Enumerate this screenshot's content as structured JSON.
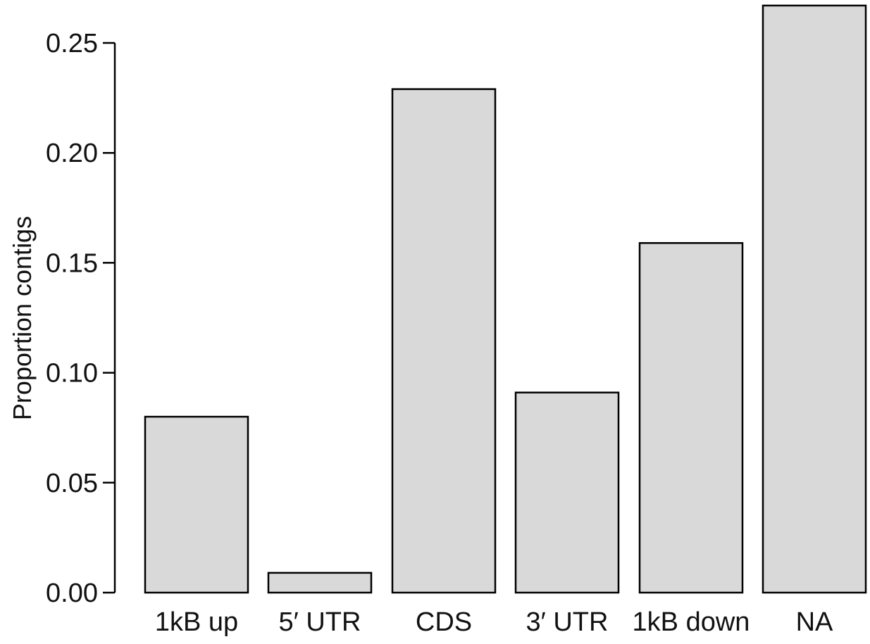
{
  "chart_data": {
    "type": "bar",
    "categories": [
      "1kB up",
      "5′ UTR",
      "CDS",
      "3′ UTR",
      "1kB down",
      "NA"
    ],
    "values": [
      0.08,
      0.009,
      0.229,
      0.091,
      0.159,
      0.267
    ],
    "title": "",
    "xlabel": "",
    "ylabel": "Proportion contigs",
    "ylim": [
      0,
      0.25
    ],
    "yticks": [
      0.0,
      0.05,
      0.1,
      0.15,
      0.2,
      0.25
    ],
    "ytick_labels": [
      "0.00",
      "0.05",
      "0.10",
      "0.15",
      "0.20",
      "0.25"
    ],
    "grid": false,
    "legend": "none",
    "bar_fill": "#d9d9d9",
    "bar_stroke": "#000000"
  }
}
